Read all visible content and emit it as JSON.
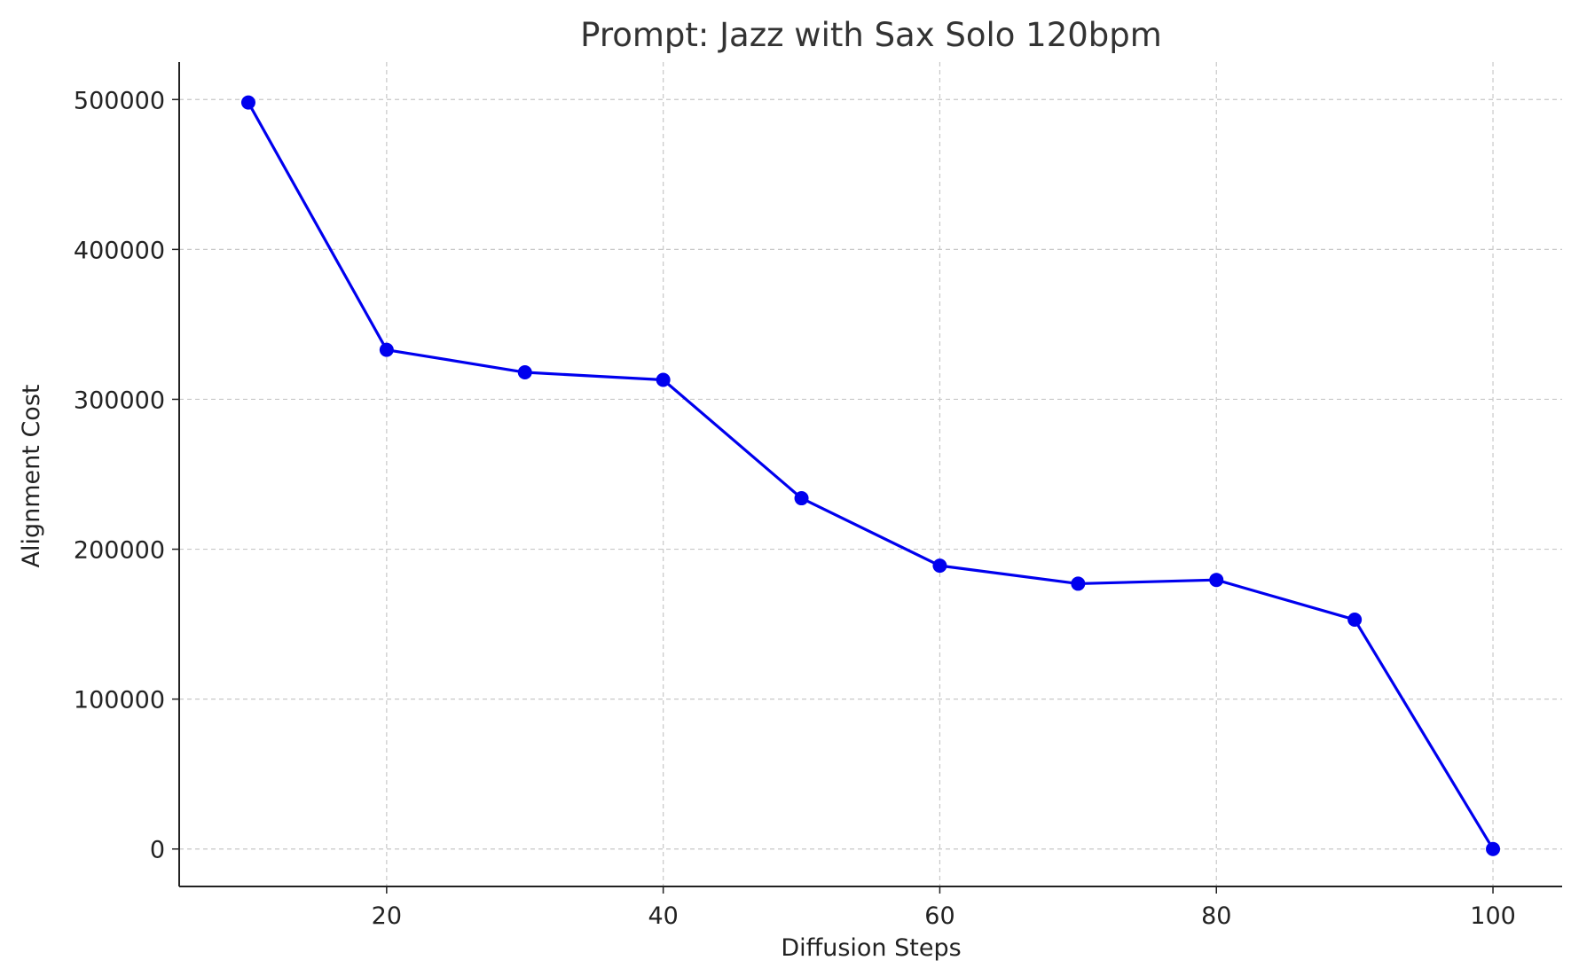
{
  "chart_data": {
    "type": "line",
    "title": "Prompt: Jazz with Sax Solo 120bpm",
    "xlabel": "Diffusion Steps",
    "ylabel": "Alignment Cost",
    "xlim": [
      5,
      105
    ],
    "ylim": [
      -25000,
      525000
    ],
    "xticks": [
      20,
      40,
      60,
      80,
      100
    ],
    "yticks": [
      0,
      100000,
      200000,
      300000,
      400000,
      500000
    ],
    "grid": true,
    "series": [
      {
        "color": "#0000ee",
        "x": [
          10,
          20,
          30,
          40,
          50,
          60,
          70,
          80,
          90,
          100
        ],
        "y": [
          498000,
          333000,
          318000,
          313000,
          234000,
          189000,
          177000,
          179500,
          153000,
          0
        ]
      }
    ]
  }
}
